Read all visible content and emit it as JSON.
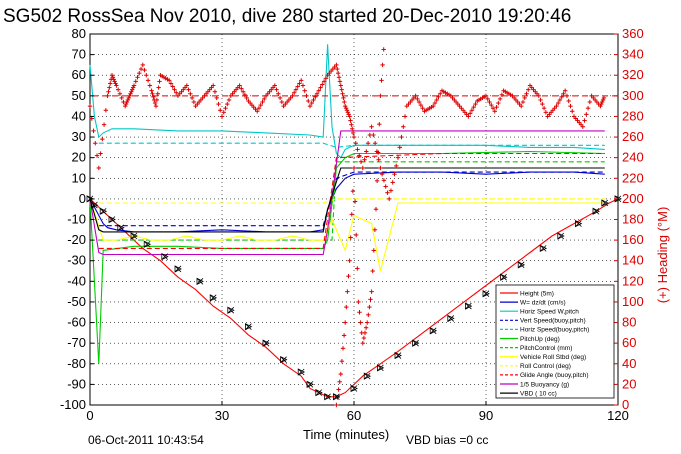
{
  "title": "SG502 RossSea Nov 2010, dive 280 started 20-Dec-2010 19:20:46",
  "footer": {
    "timestamp": "06-Oct-2011 10:43:54",
    "vbd_bias": "VBD bias =0 cc"
  },
  "chart_data": {
    "type": "line",
    "xlabel": "Time (minutes)",
    "ylabel_right": "(+) Heading (°M)",
    "xlim": [
      0,
      120
    ],
    "ylim_left": [
      -100,
      80
    ],
    "ylim_right": [
      0,
      360
    ],
    "x_ticks": [
      "0",
      "30",
      "60",
      "90",
      "120"
    ],
    "y_ticks_left": [
      "80",
      "70",
      "60",
      "50",
      "40",
      "30",
      "20",
      "10",
      "0",
      "-10",
      "-20",
      "-30",
      "-40",
      "-50",
      "-60",
      "-70",
      "-80",
      "-90",
      "-100"
    ],
    "y_ticks_right": [
      "360",
      "340",
      "320",
      "300",
      "280",
      "260",
      "240",
      "220",
      "200",
      "180",
      "160",
      "140",
      "120",
      "100",
      "80",
      "60",
      "40",
      "20",
      "0"
    ],
    "grid": true,
    "legend_position": "bottom-right",
    "colors": {
      "height": "#ff0000",
      "w": "#0000cc",
      "horiz_speed": "#00c8c8",
      "pitch": "#00cc00",
      "roll": "#ffff00",
      "buoyancy": "#c000c0",
      "vbd": "#000000",
      "heading": "#dd0000"
    },
    "series": [
      {
        "name": "Height (5m)",
        "color": "#ff0000",
        "style": "solid",
        "x": [
          0,
          1,
          2,
          3,
          5,
          8,
          12,
          16,
          20,
          24,
          28,
          32,
          36,
          40,
          44,
          48,
          50,
          52,
          54,
          56,
          58,
          60,
          62,
          66,
          70,
          75,
          80,
          85,
          90,
          95,
          100,
          105,
          110,
          115,
          118,
          120
        ],
        "y": [
          0,
          -2,
          -4,
          -6,
          -10,
          -16,
          -24,
          -30,
          -38,
          -44,
          -52,
          -58,
          -66,
          -72,
          -80,
          -86,
          -92,
          -94,
          -96,
          -96,
          -94,
          -90,
          -86,
          -80,
          -74,
          -66,
          -58,
          -50,
          -42,
          -34,
          -26,
          -18,
          -12,
          -6,
          -2,
          0
        ]
      },
      {
        "name": "W= dz/dt (cm/s)",
        "color": "#0000cc",
        "style": "solid",
        "x": [
          0,
          2,
          3,
          4,
          6,
          10,
          20,
          30,
          40,
          50,
          53,
          54,
          56,
          58,
          60,
          70,
          80,
          90,
          100,
          110,
          117
        ],
        "y": [
          0,
          -8,
          -12,
          -14,
          -15,
          -16,
          -16,
          -15,
          -16,
          -16,
          -15,
          -5,
          5,
          10,
          12,
          13,
          13,
          12,
          13,
          13,
          12
        ]
      },
      {
        "name": "Horiz Speed W,pitch",
        "color": "#00c8c8",
        "style": "solid",
        "x": [
          0,
          1,
          2,
          3,
          5,
          10,
          20,
          30,
          40,
          50,
          53,
          54,
          55,
          56,
          57,
          58,
          60,
          70,
          80,
          90,
          100,
          110,
          117
        ],
        "y": [
          65,
          40,
          30,
          32,
          34,
          34,
          33,
          33,
          32,
          31,
          30,
          75,
          35,
          22,
          20,
          24,
          26,
          26,
          26,
          26,
          25,
          25,
          24
        ]
      },
      {
        "name": "Vert Speed(buoy,pitch)",
        "color": "#0000cc",
        "style": "dashed",
        "x": [
          2,
          20,
          40,
          53,
          56,
          60,
          80,
          100,
          117
        ],
        "y": [
          -13,
          -13,
          -13,
          -13,
          10,
          13,
          13,
          13,
          13
        ]
      },
      {
        "name": "Horiz Speed(buoy,pitch)",
        "color": "#00c8c8",
        "style": "dashed",
        "x": [
          2,
          20,
          40,
          53,
          56,
          60,
          80,
          100,
          117
        ],
        "y": [
          27,
          27,
          27,
          27,
          25,
          26,
          26,
          26,
          26
        ]
      },
      {
        "name": "PitchUp (deg)",
        "color": "#00cc00",
        "style": "solid",
        "x": [
          0,
          2,
          3,
          10,
          20,
          30,
          40,
          53,
          54,
          56,
          58,
          60,
          80,
          100,
          117
        ],
        "y": [
          0,
          -80,
          -25,
          -23,
          -23,
          -24,
          -24,
          -24,
          -20,
          15,
          20,
          22,
          22,
          23,
          22
        ]
      },
      {
        "name": "PitchControl (mm)",
        "color": "#00cc00",
        "style": "dashed",
        "x": [
          2,
          20,
          40,
          53,
          55,
          56,
          80,
          100,
          117
        ],
        "y": [
          -20,
          -20,
          -20,
          -20,
          -20,
          18,
          18,
          18,
          18
        ]
      },
      {
        "name": "Vehicle Roll Stbd (deg)",
        "color": "#ffff00",
        "style": "solid",
        "x": [
          0,
          3,
          6,
          10,
          14,
          18,
          22,
          26,
          30,
          34,
          38,
          42,
          46,
          50,
          53,
          55,
          58,
          60,
          62,
          64,
          66,
          70,
          80,
          90,
          100,
          110,
          117
        ],
        "y": [
          0,
          -20,
          -20,
          -18,
          -20,
          -20,
          -18,
          -20,
          -20,
          -18,
          -20,
          -20,
          -18,
          -20,
          -20,
          -10,
          -25,
          -8,
          -10,
          -12,
          -35,
          -2,
          -2,
          -2,
          -2,
          -2,
          -2
        ]
      },
      {
        "name": "Roll Control (deg)",
        "color": "#ffff00",
        "style": "dashed",
        "x": [
          2,
          20,
          40,
          53,
          56,
          80,
          100,
          117
        ],
        "y": [
          -2,
          -2,
          -2,
          -2,
          0,
          0,
          0,
          0
        ]
      },
      {
        "name": "Glide Angle (buoy,pitch)",
        "color": "#ff0000",
        "style": "dashed",
        "x": [
          2,
          20,
          40,
          53,
          56,
          80,
          100,
          117
        ],
        "y": [
          -24,
          -24,
          -24,
          -24,
          20,
          22,
          22,
          22
        ]
      },
      {
        "name": "1/5 Buoyancy (g)",
        "color": "#c000c0",
        "style": "solid",
        "x": [
          0,
          2,
          3,
          10,
          20,
          30,
          40,
          53,
          54,
          57,
          60,
          80,
          100,
          117
        ],
        "y": [
          0,
          -26,
          -27,
          -27,
          -27,
          -27,
          -27,
          -27,
          -15,
          33,
          33,
          33,
          33,
          33
        ]
      },
      {
        "name": "VBD ( 10 cc)",
        "color": "#000000",
        "style": "solid",
        "x": [
          0,
          2,
          3,
          10,
          20,
          30,
          40,
          53,
          54,
          57,
          60,
          80,
          100,
          117
        ],
        "y": [
          0,
          -15,
          -16,
          -16,
          -16,
          -16,
          -16,
          -16,
          -5,
          15,
          15,
          15,
          15,
          15
        ]
      }
    ],
    "heading": {
      "name": "Heading",
      "color": "#dd0000",
      "marker": "+",
      "target_value": 300,
      "x": [
        0,
        2,
        4,
        5,
        6,
        8,
        9,
        10,
        12,
        14,
        15,
        16,
        18,
        20,
        22,
        24,
        26,
        28,
        30,
        32,
        34,
        36,
        38,
        40,
        42,
        44,
        46,
        48,
        50,
        52,
        54,
        56,
        57,
        58,
        59,
        60,
        62,
        64,
        66,
        68,
        70,
        72,
        74,
        76,
        78,
        80,
        82,
        84,
        86,
        88,
        90,
        92,
        94,
        96,
        98,
        100,
        102,
        104,
        106,
        108,
        110,
        112,
        114,
        116,
        117
      ],
      "y": [
        290,
        230,
        300,
        320,
        310,
        290,
        300,
        310,
        330,
        305,
        290,
        320,
        315,
        300,
        310,
        290,
        300,
        310,
        280,
        300,
        310,
        295,
        285,
        300,
        310,
        290,
        300,
        315,
        290,
        305,
        320,
        330,
        310,
        290,
        280,
        260,
        230,
        270,
        230,
        200,
        240,
        290,
        300,
        285,
        290,
        305,
        300,
        290,
        280,
        295,
        300,
        285,
        305,
        300,
        290,
        310,
        300,
        280,
        290,
        305,
        280,
        270,
        300,
        290,
        300
      ]
    },
    "heading_dive_transit": {
      "x": [
        56,
        57,
        58,
        59,
        60,
        61,
        62,
        63,
        64,
        65,
        66,
        67
      ],
      "y": [
        0,
        30,
        80,
        140,
        230,
        100,
        60,
        80,
        110,
        190,
        300,
        360
      ]
    },
    "vbd_markers": {
      "x": [
        0,
        1,
        3,
        5,
        7,
        10,
        13,
        17,
        20,
        25,
        28,
        32,
        36,
        40,
        44,
        48,
        50,
        52,
        54,
        56,
        60,
        63,
        66,
        70,
        74,
        78,
        82,
        86,
        90,
        94,
        98,
        103,
        107,
        111,
        115,
        117,
        120
      ],
      "y": [
        0,
        -3,
        -6,
        -10,
        -14,
        -18,
        -22,
        -28,
        -34,
        -40,
        -48,
        -54,
        -62,
        -70,
        -78,
        -84,
        -90,
        -94,
        -96,
        -96,
        -92,
        -86,
        -82,
        -76,
        -70,
        -64,
        -58,
        -52,
        -46,
        -38,
        -32,
        -24,
        -18,
        -12,
        -6,
        -2,
        0
      ]
    },
    "legend": [
      {
        "label": "Height (5m)",
        "color": "#ff0000",
        "style": "solid"
      },
      {
        "label": "W= dz/dt (cm/s)",
        "color": "#0000cc",
        "style": "solid"
      },
      {
        "label": "Horiz Speed W,pitch",
        "color": "#00c8c8",
        "style": "solid"
      },
      {
        "label": "Vert Speed(buoy,pitch)",
        "color": "#0000cc",
        "style": "dashed"
      },
      {
        "label": "Horiz Speed(buoy,pitch)",
        "color": "#00c8c8",
        "style": "dashed"
      },
      {
        "label": "PitchUp (deg)",
        "color": "#00cc00",
        "style": "solid"
      },
      {
        "label": "PitchControl (mm)",
        "color": "#00cc00",
        "style": "dashed"
      },
      {
        "label": "Vehicle Roll Stbd (deg)",
        "color": "#ffff00",
        "style": "solid"
      },
      {
        "label": "Roll Control (deg)",
        "color": "#ffff00",
        "style": "dashed"
      },
      {
        "label": "Glide Angle (buoy,pitch)",
        "color": "#ff0000",
        "style": "dashed"
      },
      {
        "label": "1/5 Buoyancy (g)",
        "color": "#c000c0",
        "style": "solid"
      },
      {
        "label": "VBD ( 10 cc)",
        "color": "#000000",
        "style": "solid"
      }
    ]
  }
}
